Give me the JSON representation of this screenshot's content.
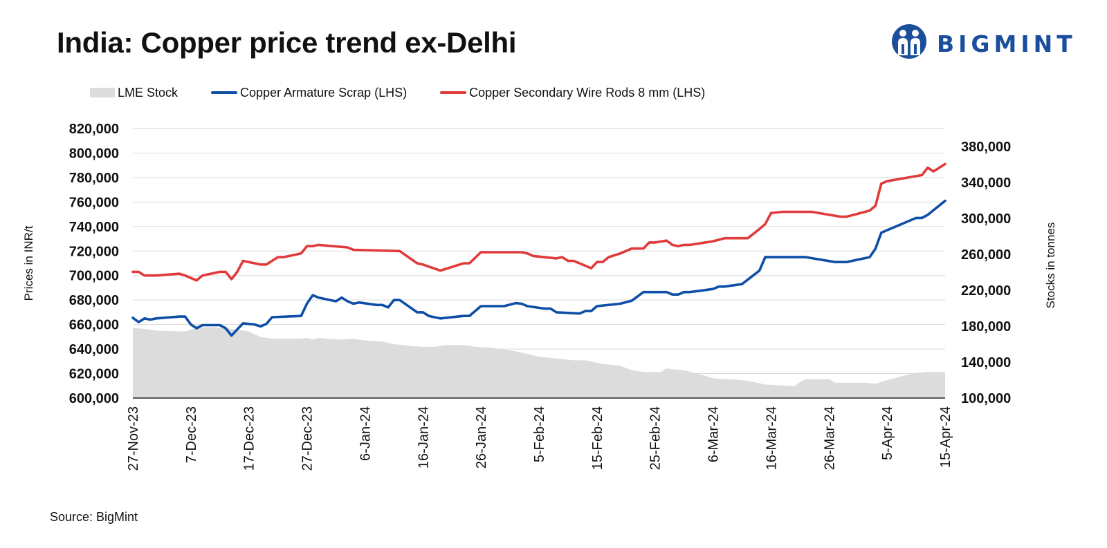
{
  "title": "India: Copper price trend ex-Delhi",
  "brand": "BIGMINT",
  "source": "Source: BigMint",
  "colors": {
    "stock": "#dcdcdc",
    "armature": "#0d4ea6",
    "wire_rods": "#e03a3a",
    "brand": "#1b4f9c"
  },
  "chart_data": {
    "type": "line",
    "title": "India: Copper price trend ex-Delhi",
    "ylabel": "Prices in INR/t",
    "y2label": "Stocks in tonnes",
    "ylim": [
      600000,
      820000
    ],
    "y2lim": [
      100000,
      400000
    ],
    "yticks": [
      "600,000",
      "620,000",
      "640,000",
      "660,000",
      "680,000",
      "700,000",
      "720,000",
      "740,000",
      "760,000",
      "780,000",
      "800,000",
      "820,000"
    ],
    "y2ticks": [
      "100,000",
      "140,000",
      "180,000",
      "220,000",
      "260,000",
      "300,000",
      "340,000",
      "380,000"
    ],
    "xrange": [
      "2023-11-27",
      "2024-04-15"
    ],
    "xticks": [
      {
        "date": "2023-11-27",
        "label": "27-Nov-23"
      },
      {
        "date": "2023-12-07",
        "label": "7-Dec-23"
      },
      {
        "date": "2023-12-17",
        "label": "17-Dec-23"
      },
      {
        "date": "2023-12-27",
        "label": "27-Dec-23"
      },
      {
        "date": "2024-01-06",
        "label": "6-Jan-24"
      },
      {
        "date": "2024-01-16",
        "label": "16-Jan-24"
      },
      {
        "date": "2024-01-26",
        "label": "26-Jan-24"
      },
      {
        "date": "2024-02-05",
        "label": "5-Feb-24"
      },
      {
        "date": "2024-02-15",
        "label": "15-Feb-24"
      },
      {
        "date": "2024-02-25",
        "label": "25-Feb-24"
      },
      {
        "date": "2024-03-06",
        "label": "6-Mar-24"
      },
      {
        "date": "2024-03-16",
        "label": "16-Mar-24"
      },
      {
        "date": "2024-03-26",
        "label": "26-Mar-24"
      },
      {
        "date": "2024-04-05",
        "label": "5-Apr-24"
      },
      {
        "date": "2024-04-15",
        "label": "15-Apr-24"
      }
    ],
    "grid": true,
    "legend_position": "top-left",
    "series": [
      {
        "name": "LME Stock",
        "type": "area",
        "axis": "right",
        "points": [
          [
            "2023-11-27",
            178000
          ],
          [
            "2023-11-29",
            177000
          ],
          [
            "2023-12-01",
            175000
          ],
          [
            "2023-12-04",
            174500
          ],
          [
            "2023-12-06",
            174000
          ],
          [
            "2023-12-08",
            178000
          ],
          [
            "2023-12-10",
            179000
          ],
          [
            "2023-12-13",
            178000
          ],
          [
            "2023-12-15",
            176000
          ],
          [
            "2023-12-17",
            174000
          ],
          [
            "2023-12-19",
            168000
          ],
          [
            "2023-12-21",
            166000
          ],
          [
            "2023-12-24",
            166000
          ],
          [
            "2023-12-26",
            166000
          ],
          [
            "2023-12-27",
            167000
          ],
          [
            "2023-12-28",
            165000
          ],
          [
            "2023-12-29",
            167000
          ],
          [
            "2024-01-02",
            165000
          ],
          [
            "2024-01-04",
            166000
          ],
          [
            "2024-01-06",
            164000
          ],
          [
            "2024-01-09",
            163000
          ],
          [
            "2024-01-11",
            160000
          ],
          [
            "2024-01-14",
            158000
          ],
          [
            "2024-01-16",
            157000
          ],
          [
            "2024-01-18",
            157000
          ],
          [
            "2024-01-20",
            159000
          ],
          [
            "2024-01-23",
            159000
          ],
          [
            "2024-01-25",
            157000
          ],
          [
            "2024-01-28",
            156000
          ],
          [
            "2024-01-30",
            154000
          ],
          [
            "2024-02-01",
            152000
          ],
          [
            "2024-02-03",
            149000
          ],
          [
            "2024-02-05",
            146000
          ],
          [
            "2024-02-08",
            144000
          ],
          [
            "2024-02-11",
            142000
          ],
          [
            "2024-02-13",
            142000
          ],
          [
            "2024-02-16",
            138000
          ],
          [
            "2024-02-19",
            136000
          ],
          [
            "2024-02-21",
            131000
          ],
          [
            "2024-02-23",
            129000
          ],
          [
            "2024-02-26",
            129000
          ],
          [
            "2024-02-27",
            133000
          ],
          [
            "2024-02-28",
            132000
          ],
          [
            "2024-03-01",
            131000
          ],
          [
            "2024-03-04",
            126000
          ],
          [
            "2024-03-06",
            122000
          ],
          [
            "2024-03-08",
            121000
          ],
          [
            "2024-03-11",
            120000
          ],
          [
            "2024-03-13",
            118000
          ],
          [
            "2024-03-15",
            115000
          ],
          [
            "2024-03-18",
            114000
          ],
          [
            "2024-03-20",
            113000
          ],
          [
            "2024-03-21",
            118000
          ],
          [
            "2024-03-22",
            121000
          ],
          [
            "2024-03-26",
            121000
          ],
          [
            "2024-03-27",
            117000
          ],
          [
            "2024-03-29",
            117000
          ],
          [
            "2024-04-01",
            117000
          ],
          [
            "2024-04-03",
            116000
          ],
          [
            "2024-04-05",
            120000
          ],
          [
            "2024-04-08",
            125000
          ],
          [
            "2024-04-10",
            128000
          ],
          [
            "2024-04-12",
            129000
          ],
          [
            "2024-04-15",
            129000
          ]
        ]
      },
      {
        "name": "Copper Armature Scrap (LHS)",
        "type": "line",
        "axis": "left",
        "points": [
          [
            "2023-11-27",
            665500
          ],
          [
            "2023-11-28",
            662000
          ],
          [
            "2023-11-29",
            665000
          ],
          [
            "2023-11-30",
            664000
          ],
          [
            "2023-12-01",
            665000
          ],
          [
            "2023-12-05",
            666500
          ],
          [
            "2023-12-06",
            666500
          ],
          [
            "2023-12-07",
            660000
          ],
          [
            "2023-12-08",
            657000
          ],
          [
            "2023-12-09",
            659500
          ],
          [
            "2023-12-12",
            659500
          ],
          [
            "2023-12-13",
            657000
          ],
          [
            "2023-12-14",
            651000
          ],
          [
            "2023-12-15",
            656000
          ],
          [
            "2023-12-16",
            661000
          ],
          [
            "2023-12-18",
            660000
          ],
          [
            "2023-12-19",
            658500
          ],
          [
            "2023-12-20",
            660500
          ],
          [
            "2023-12-21",
            666000
          ],
          [
            "2023-12-26",
            667000
          ],
          [
            "2023-12-27",
            677000
          ],
          [
            "2023-12-28",
            684000
          ],
          [
            "2023-12-29",
            682000
          ],
          [
            "2024-01-01",
            679000
          ],
          [
            "2024-01-02",
            682000
          ],
          [
            "2024-01-03",
            679000
          ],
          [
            "2024-01-04",
            677000
          ],
          [
            "2024-01-05",
            678000
          ],
          [
            "2024-01-08",
            676000
          ],
          [
            "2024-01-09",
            676000
          ],
          [
            "2024-01-10",
            674000
          ],
          [
            "2024-01-11",
            680000
          ],
          [
            "2024-01-12",
            680000
          ],
          [
            "2024-01-15",
            670000
          ],
          [
            "2024-01-16",
            670000
          ],
          [
            "2024-01-17",
            667000
          ],
          [
            "2024-01-19",
            665000
          ],
          [
            "2024-01-23",
            667000
          ],
          [
            "2024-01-24",
            667000
          ],
          [
            "2024-01-26",
            675000
          ],
          [
            "2024-01-30",
            675000
          ],
          [
            "2024-02-01",
            677500
          ],
          [
            "2024-02-02",
            677000
          ],
          [
            "2024-02-03",
            675000
          ],
          [
            "2024-02-06",
            673000
          ],
          [
            "2024-02-07",
            673000
          ],
          [
            "2024-02-08",
            670000
          ],
          [
            "2024-02-12",
            669000
          ],
          [
            "2024-02-13",
            671000
          ],
          [
            "2024-02-14",
            671000
          ],
          [
            "2024-02-15",
            675000
          ],
          [
            "2024-02-19",
            677000
          ],
          [
            "2024-02-21",
            679500
          ],
          [
            "2024-02-22",
            683000
          ],
          [
            "2024-02-23",
            686500
          ],
          [
            "2024-02-27",
            686500
          ],
          [
            "2024-02-28",
            684500
          ],
          [
            "2024-02-29",
            684500
          ],
          [
            "2024-03-01",
            686500
          ],
          [
            "2024-03-02",
            686500
          ],
          [
            "2024-03-06",
            689000
          ],
          [
            "2024-03-07",
            691000
          ],
          [
            "2024-03-08",
            691000
          ],
          [
            "2024-03-11",
            693000
          ],
          [
            "2024-03-14",
            704000
          ],
          [
            "2024-03-15",
            715000
          ],
          [
            "2024-03-22",
            715000
          ],
          [
            "2024-03-27",
            711000
          ],
          [
            "2024-03-29",
            711000
          ],
          [
            "2024-04-02",
            715000
          ],
          [
            "2024-04-03",
            722000
          ],
          [
            "2024-04-04",
            735000
          ],
          [
            "2024-04-05",
            737000
          ],
          [
            "2024-04-10",
            747000
          ],
          [
            "2024-04-11",
            747000
          ],
          [
            "2024-04-12",
            749500
          ],
          [
            "2024-04-15",
            761000
          ]
        ]
      },
      {
        "name": "Copper Secondary Wire Rods 8 mm (LHS)",
        "type": "line",
        "axis": "left",
        "points": [
          [
            "2023-11-27",
            703000
          ],
          [
            "2023-11-28",
            703000
          ],
          [
            "2023-11-29",
            700000
          ],
          [
            "2023-12-01",
            700000
          ],
          [
            "2023-12-05",
            701500
          ],
          [
            "2023-12-06",
            700000
          ],
          [
            "2023-12-08",
            696000
          ],
          [
            "2023-12-09",
            700000
          ],
          [
            "2023-12-12",
            703000
          ],
          [
            "2023-12-13",
            703000
          ],
          [
            "2023-12-14",
            697000
          ],
          [
            "2023-12-15",
            703000
          ],
          [
            "2023-12-16",
            712000
          ],
          [
            "2023-12-19",
            709000
          ],
          [
            "2023-12-20",
            709000
          ],
          [
            "2023-12-22",
            715000
          ],
          [
            "2023-12-23",
            715000
          ],
          [
            "2023-12-26",
            718000
          ],
          [
            "2023-12-27",
            724000
          ],
          [
            "2023-12-28",
            724000
          ],
          [
            "2023-12-29",
            725000
          ],
          [
            "2024-01-03",
            723000
          ],
          [
            "2024-01-04",
            721000
          ],
          [
            "2024-01-12",
            720000
          ],
          [
            "2024-01-15",
            710000
          ],
          [
            "2024-01-16",
            709000
          ],
          [
            "2024-01-19",
            704000
          ],
          [
            "2024-01-23",
            710000
          ],
          [
            "2024-01-24",
            710000
          ],
          [
            "2024-01-26",
            719000
          ],
          [
            "2024-02-02",
            719000
          ],
          [
            "2024-02-03",
            718000
          ],
          [
            "2024-02-04",
            716000
          ],
          [
            "2024-02-08",
            714000
          ],
          [
            "2024-02-09",
            715000
          ],
          [
            "2024-02-10",
            712000
          ],
          [
            "2024-02-11",
            712000
          ],
          [
            "2024-02-14",
            706000
          ],
          [
            "2024-02-15",
            711000
          ],
          [
            "2024-02-16",
            711000
          ],
          [
            "2024-02-17",
            715000
          ],
          [
            "2024-02-19",
            718000
          ],
          [
            "2024-02-21",
            722000
          ],
          [
            "2024-02-23",
            722000
          ],
          [
            "2024-02-24",
            727000
          ],
          [
            "2024-02-25",
            727000
          ],
          [
            "2024-02-27",
            728500
          ],
          [
            "2024-02-28",
            725000
          ],
          [
            "2024-02-29",
            724000
          ],
          [
            "2024-03-01",
            725000
          ],
          [
            "2024-03-02",
            725000
          ],
          [
            "2024-03-06",
            728000
          ],
          [
            "2024-03-08",
            730500
          ],
          [
            "2024-03-12",
            730500
          ],
          [
            "2024-03-14",
            738000
          ],
          [
            "2024-03-15",
            742000
          ],
          [
            "2024-03-16",
            751000
          ],
          [
            "2024-03-18",
            752000
          ],
          [
            "2024-03-23",
            752000
          ],
          [
            "2024-03-28",
            748000
          ],
          [
            "2024-03-29",
            748000
          ],
          [
            "2024-04-02",
            753000
          ],
          [
            "2024-04-03",
            757000
          ],
          [
            "2024-04-04",
            775000
          ],
          [
            "2024-04-05",
            777000
          ],
          [
            "2024-04-11",
            782000
          ],
          [
            "2024-04-12",
            788000
          ],
          [
            "2024-04-13",
            785000
          ],
          [
            "2024-04-15",
            791000
          ]
        ]
      }
    ]
  }
}
